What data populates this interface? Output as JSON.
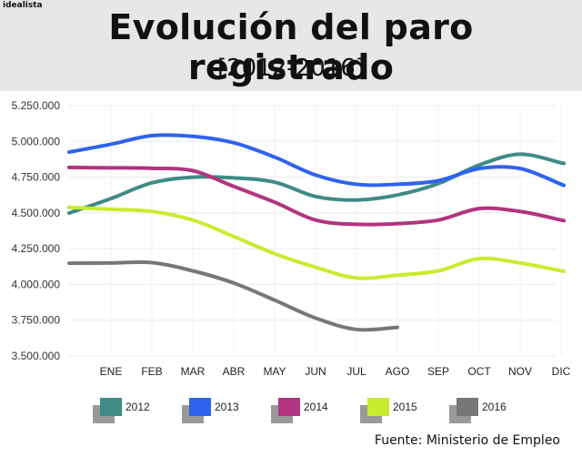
{
  "header": {
    "brand": "idealista",
    "title": "Evolución del paro registrado",
    "subtitle": "[2012-2016]"
  },
  "source": "Fuente: Ministerio de Empleo",
  "chart_data": {
    "type": "line",
    "categories": [
      "ENE",
      "FEB",
      "MAR",
      "ABR",
      "MAY",
      "JUN",
      "JUL",
      "AGO",
      "SEP",
      "OCT",
      "NOV",
      "DIC"
    ],
    "ylim": [
      3500000,
      5250000
    ],
    "yticks": [
      3500000,
      3750000,
      4000000,
      4250000,
      4500000,
      4750000,
      5000000,
      5250000
    ],
    "ytick_labels": [
      "3.500.000",
      "3.750.000",
      "4.000.000",
      "4.250.000",
      "4.500.000",
      "4.750.000",
      "5.000.000",
      "5.250.000"
    ],
    "grid": true,
    "legend_position": "bottom",
    "series": [
      {
        "name": "2012",
        "color": "#3f8a84",
        "values": [
          4600000,
          4710000,
          4750000,
          4745000,
          4715000,
          4615000,
          4590000,
          4625000,
          4705000,
          4835000,
          4910000,
          4850000
        ]
      },
      {
        "name": "2013",
        "color": "#2f63ee",
        "values": [
          4980000,
          5040000,
          5035000,
          4990000,
          4890000,
          4765000,
          4700000,
          4700000,
          4725000,
          4810000,
          4810000,
          4700000
        ]
      },
      {
        "name": "2014",
        "color": "#b1347f",
        "values": [
          4815000,
          4812000,
          4795000,
          4685000,
          4575000,
          4450000,
          4420000,
          4425000,
          4450000,
          4530000,
          4510000,
          4450000
        ]
      },
      {
        "name": "2015",
        "color": "#c8ec2f",
        "values": [
          4525000,
          4510000,
          4450000,
          4335000,
          4215000,
          4120000,
          4045000,
          4065000,
          4095000,
          4180000,
          4150000,
          4095000
        ]
      },
      {
        "name": "2016",
        "color": "#777777",
        "values": [
          4150000,
          4152000,
          4095000,
          4010000,
          3890000,
          3765000,
          3685000,
          3700000,
          null,
          null,
          null,
          null
        ]
      }
    ]
  }
}
